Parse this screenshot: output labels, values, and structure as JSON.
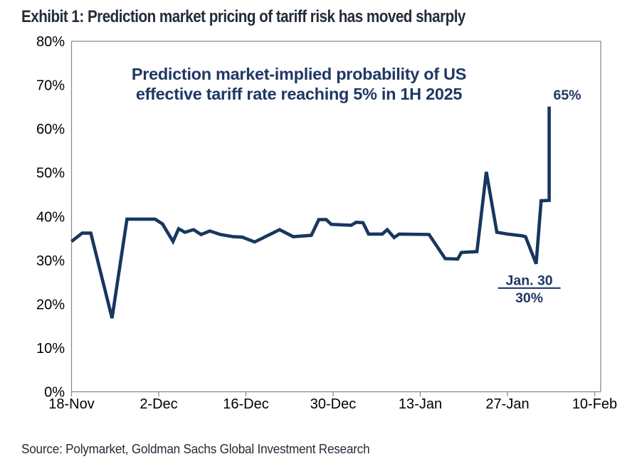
{
  "exhibit_title": "Exhibit 1: Prediction market pricing of tariff risk has moved sharply",
  "source": "Source: Polymarket, Goldman Sachs Global Investment Research",
  "colors": {
    "line": "#17375E",
    "title": "#1F3864",
    "heading": "#232D38",
    "axis": "#8C8C8C",
    "tick_text": "#000000"
  },
  "chart_data": {
    "type": "line",
    "title_line1": "Prediction market-implied probability of US",
    "title_line2": "effective tariff rate reaching 5% in 1H 2025",
    "ylim": [
      0,
      80
    ],
    "x_range_days": 84,
    "grid": "off",
    "legend": "none",
    "y_ticks": [
      {
        "label": "80%",
        "value": 80
      },
      {
        "label": "70%",
        "value": 70
      },
      {
        "label": "60%",
        "value": 60
      },
      {
        "label": "50%",
        "value": 50
      },
      {
        "label": "40%",
        "value": 40
      },
      {
        "label": "30%",
        "value": 30
      },
      {
        "label": "20%",
        "value": 20
      },
      {
        "label": "10%",
        "value": 10
      },
      {
        "label": "0%",
        "value": 0
      }
    ],
    "x_ticks": [
      {
        "label": "18-Nov",
        "day": 0
      },
      {
        "label": "2-Dec",
        "day": 14
      },
      {
        "label": "16-Dec",
        "day": 28
      },
      {
        "label": "30-Dec",
        "day": 42
      },
      {
        "label": "13-Jan",
        "day": 56
      },
      {
        "label": "27-Jan",
        "day": 70
      },
      {
        "label": "10-Feb",
        "day": 84
      }
    ],
    "series": [
      {
        "name": "Probability of US effective tariff rate reaching 5% in 1H 2025",
        "points": [
          [
            0,
            34.3
          ],
          [
            1.7,
            36.2
          ],
          [
            3.1,
            36.2
          ],
          [
            6.5,
            16.8
          ],
          [
            8.9,
            39.4
          ],
          [
            13.4,
            39.4
          ],
          [
            14.6,
            38.3
          ],
          [
            16.3,
            34.3
          ],
          [
            17.2,
            37.2
          ],
          [
            18.2,
            36.4
          ],
          [
            19.6,
            37.0
          ],
          [
            20.8,
            35.9
          ],
          [
            22.2,
            36.7
          ],
          [
            23.9,
            35.9
          ],
          [
            26.0,
            35.4
          ],
          [
            27.4,
            35.3
          ],
          [
            29.4,
            34.2
          ],
          [
            33.4,
            37.0
          ],
          [
            35.6,
            35.4
          ],
          [
            38.5,
            35.7
          ],
          [
            39.7,
            39.3
          ],
          [
            40.9,
            39.3
          ],
          [
            41.7,
            38.2
          ],
          [
            44.9,
            38.0
          ],
          [
            45.7,
            38.7
          ],
          [
            46.8,
            38.6
          ],
          [
            47.7,
            36.0
          ],
          [
            49.9,
            36.0
          ],
          [
            50.7,
            37.0
          ],
          [
            51.8,
            35.2
          ],
          [
            52.6,
            36.0
          ],
          [
            57.4,
            35.9
          ],
          [
            60.0,
            30.4
          ],
          [
            62.0,
            30.3
          ],
          [
            62.6,
            31.8
          ],
          [
            65.1,
            32.0
          ],
          [
            66.6,
            50.2
          ],
          [
            68.3,
            36.4
          ],
          [
            70.0,
            36.0
          ],
          [
            72.3,
            35.6
          ],
          [
            72.9,
            35.4
          ],
          [
            74.6,
            29.2
          ],
          [
            75.4,
            43.6
          ],
          [
            76.7,
            43.7
          ],
          [
            76.7,
            65.1
          ]
        ]
      }
    ],
    "annotations": [
      {
        "text": "65%",
        "day": 79.6,
        "value": 66.7,
        "underline": false
      },
      {
        "text": "Jan. 30",
        "day": 73.5,
        "value": 24.4,
        "underline": true
      },
      {
        "text": "30%",
        "day": 73.5,
        "value": 20.4,
        "underline": false
      }
    ]
  }
}
